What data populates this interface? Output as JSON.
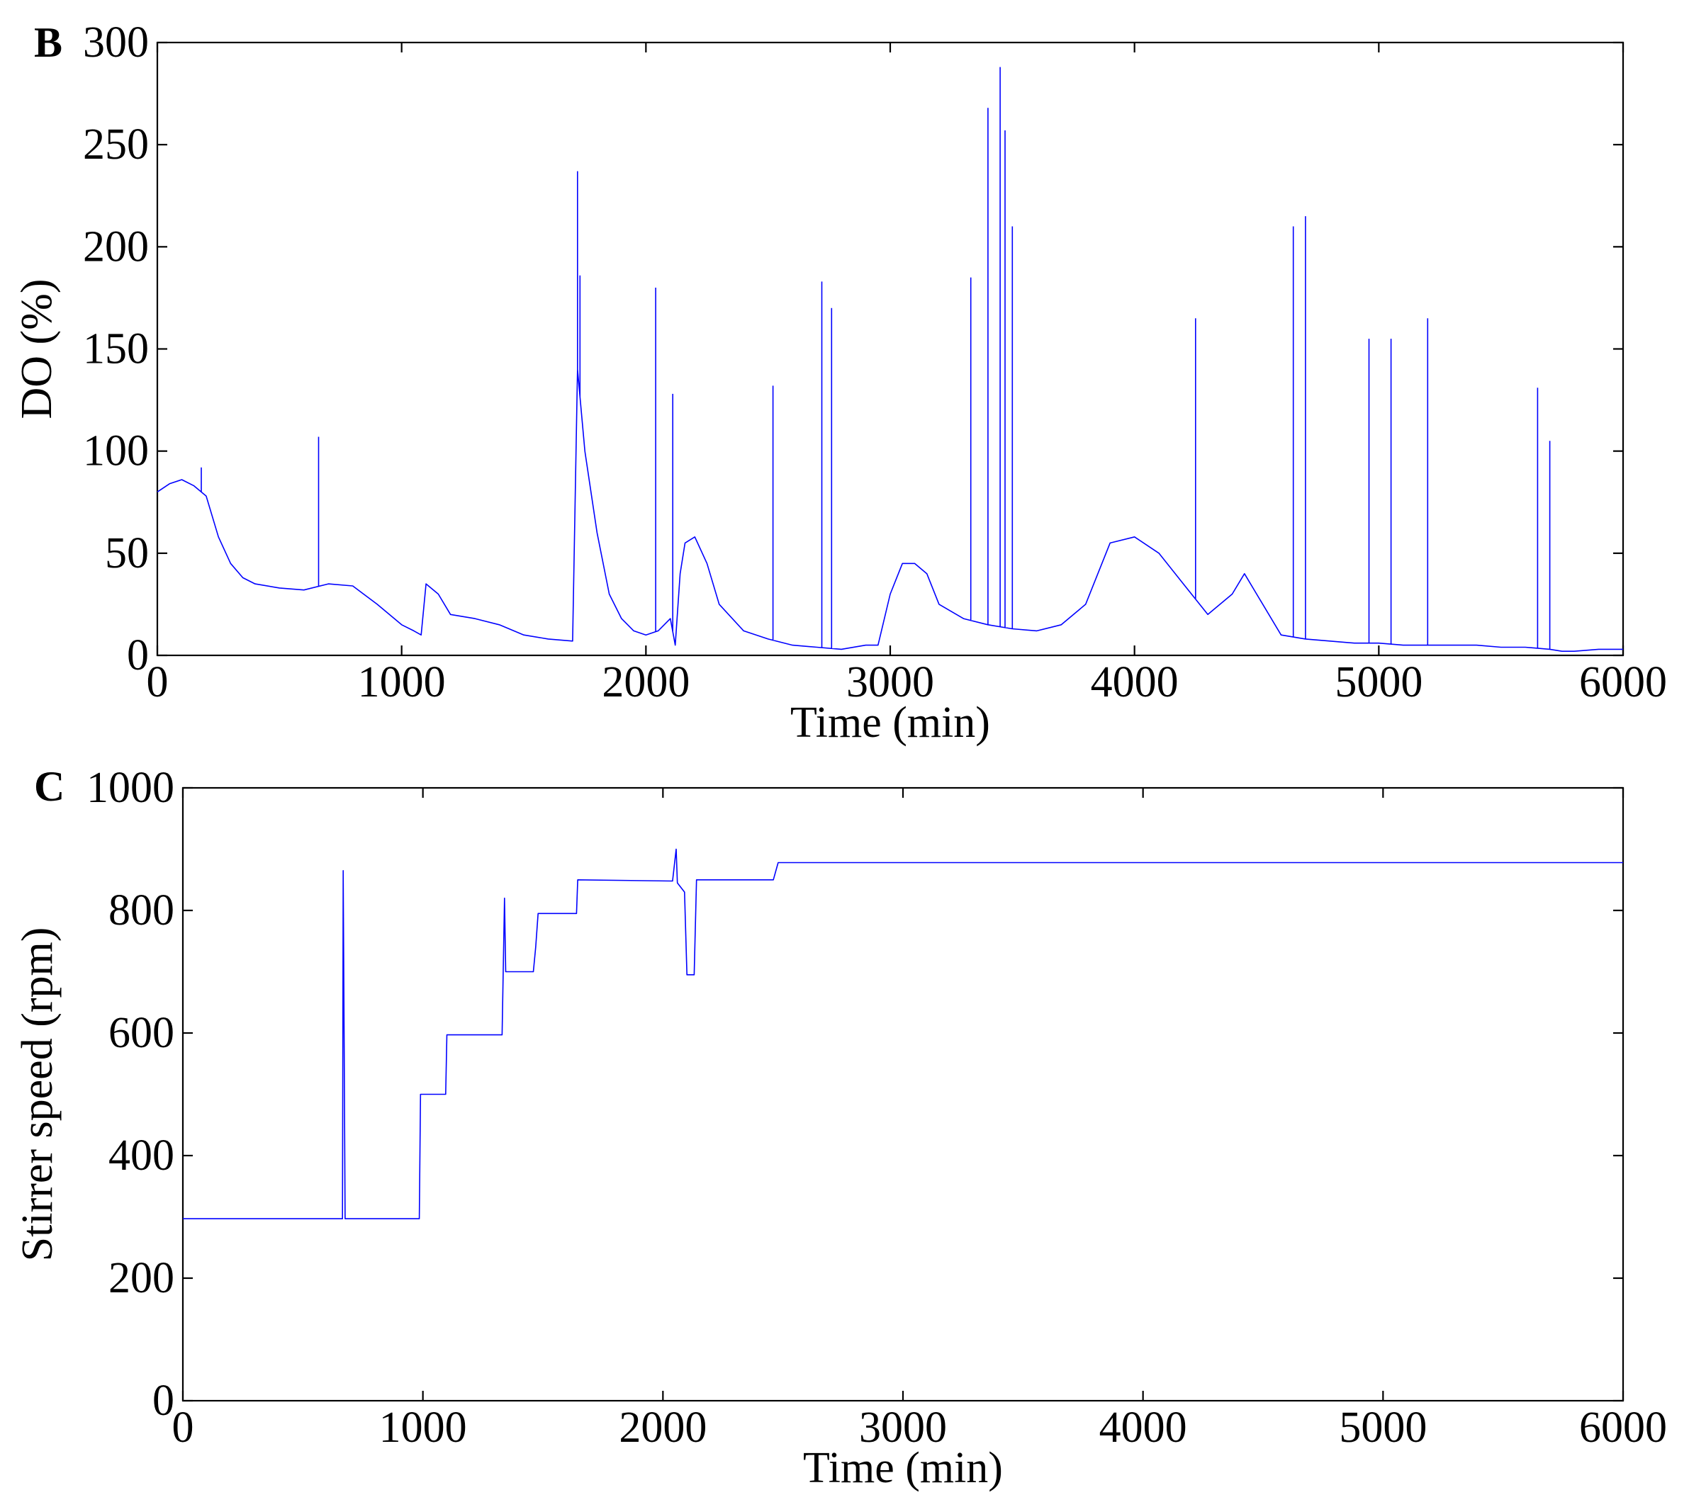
{
  "chart_data": [
    {
      "type": "line",
      "panel_label": "B",
      "title": "",
      "xlabel": "Time (min)",
      "ylabel": "DO (%)",
      "xlim": [
        0,
        6000
      ],
      "ylim": [
        0,
        300
      ],
      "xticks": [
        0,
        1000,
        2000,
        3000,
        4000,
        5000,
        6000
      ],
      "yticks": [
        0,
        50,
        100,
        150,
        200,
        250,
        300
      ],
      "grid": false,
      "color": "#0000ff",
      "series": [
        {
          "x": [
            0,
            50,
            100,
            150,
            200,
            250,
            300,
            350,
            400,
            500,
            600,
            700,
            800,
            900,
            1000,
            1050,
            1080,
            1100,
            1150,
            1200,
            1300,
            1400,
            1500,
            1600,
            1700,
            1720,
            1750,
            1800,
            1850,
            1900,
            1950,
            2000,
            2050,
            2100,
            2120,
            2140,
            2160,
            2200,
            2250,
            2300,
            2400,
            2500,
            2600,
            2700,
            2800,
            2900,
            2950,
            3000,
            3050,
            3100,
            3150,
            3200,
            3300,
            3400,
            3500,
            3600,
            3700,
            3800,
            3900,
            4000,
            4100,
            4200,
            4300,
            4400,
            4450,
            4500,
            4600,
            4700,
            4800,
            4900,
            5000,
            5100,
            5200,
            5300,
            5400,
            5500,
            5600,
            5700,
            5750,
            5800,
            5900,
            6000
          ],
          "values": [
            80,
            84,
            86,
            83,
            78,
            58,
            45,
            38,
            35,
            33,
            32,
            35,
            34,
            25,
            15,
            12,
            10,
            35,
            30,
            20,
            18,
            15,
            10,
            8,
            7,
            140,
            100,
            60,
            30,
            18,
            12,
            10,
            12,
            18,
            5,
            40,
            55,
            58,
            45,
            25,
            12,
            8,
            5,
            4,
            3,
            5,
            5,
            30,
            45,
            45,
            40,
            25,
            18,
            15,
            13,
            12,
            15,
            25,
            55,
            58,
            50,
            35,
            20,
            30,
            40,
            30,
            10,
            8,
            7,
            6,
            6,
            5,
            5,
            5,
            5,
            4,
            4,
            3,
            2,
            2,
            3,
            3
          ],
          "peaks": [
            [
              180,
              92
            ],
            [
              660,
              107
            ],
            [
              1720,
              237
            ],
            [
              1730,
              186
            ],
            [
              2040,
              180
            ],
            [
              2110,
              128
            ],
            [
              2520,
              132
            ],
            [
              2720,
              183
            ],
            [
              2760,
              170
            ],
            [
              3330,
              185
            ],
            [
              3400,
              268
            ],
            [
              3450,
              288
            ],
            [
              3470,
              257
            ],
            [
              3500,
              210
            ],
            [
              4250,
              165
            ],
            [
              4650,
              210
            ],
            [
              4700,
              215
            ],
            [
              4960,
              155
            ],
            [
              5050,
              155
            ],
            [
              5200,
              165
            ],
            [
              5650,
              131
            ],
            [
              5700,
              105
            ]
          ]
        }
      ]
    },
    {
      "type": "line",
      "panel_label": "C",
      "title": "",
      "xlabel": "Time (min)",
      "ylabel": "Stirrer speed (rpm)",
      "xlim": [
        0,
        6000
      ],
      "ylim": [
        0,
        1000
      ],
      "xticks": [
        0,
        1000,
        2000,
        3000,
        4000,
        5000,
        6000
      ],
      "yticks": [
        0,
        200,
        400,
        600,
        800,
        1000
      ],
      "grid": false,
      "color": "#0000ff",
      "series": [
        {
          "x": [
            0,
            665,
            668,
            672,
            676,
            680,
            985,
            990,
            1095,
            1100,
            1330,
            1340,
            1345,
            1460,
            1470,
            1480,
            1580,
            1640,
            1645,
            2040,
            2055,
            2060,
            2090,
            2100,
            2130,
            2140,
            2460,
            2480,
            3000,
            4000,
            5000,
            6000
          ],
          "values": [
            297,
            297,
            865,
            580,
            297,
            297,
            297,
            500,
            500,
            597,
            597,
            820,
            700,
            700,
            740,
            795,
            795,
            795,
            850,
            848,
            900,
            845,
            830,
            695,
            695,
            850,
            850,
            878,
            878,
            878,
            878,
            878
          ]
        }
      ]
    }
  ]
}
